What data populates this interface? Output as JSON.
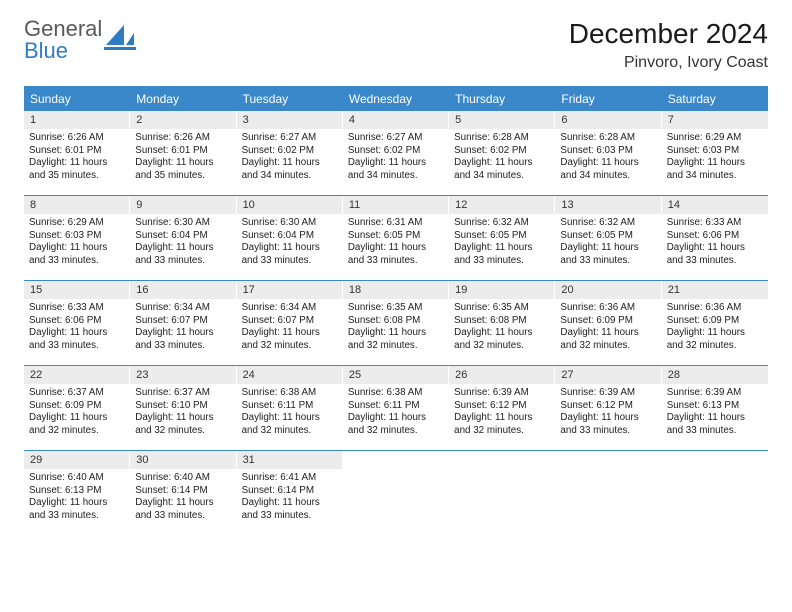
{
  "logo": {
    "line1": "General",
    "line2": "Blue",
    "icon_color": "#2e7cc2"
  },
  "title": {
    "month": "December 2024",
    "location": "Pinvoro, Ivory Coast",
    "title_fontsize": 28,
    "location_fontsize": 16,
    "title_color": "#1a1a1a"
  },
  "colors": {
    "header_bg": "#3a88c9",
    "header_text": "#ffffff",
    "daynum_bg": "#ececec",
    "body_text": "#212121",
    "week_divider": "#3a88c9",
    "background": "#ffffff"
  },
  "day_names": [
    "Sunday",
    "Monday",
    "Tuesday",
    "Wednesday",
    "Thursday",
    "Friday",
    "Saturday"
  ],
  "weeks": [
    [
      {
        "n": "1",
        "sr": "6:26 AM",
        "ss": "6:01 PM",
        "dl": "11 hours and 35 minutes."
      },
      {
        "n": "2",
        "sr": "6:26 AM",
        "ss": "6:01 PM",
        "dl": "11 hours and 35 minutes."
      },
      {
        "n": "3",
        "sr": "6:27 AM",
        "ss": "6:02 PM",
        "dl": "11 hours and 34 minutes."
      },
      {
        "n": "4",
        "sr": "6:27 AM",
        "ss": "6:02 PM",
        "dl": "11 hours and 34 minutes."
      },
      {
        "n": "5",
        "sr": "6:28 AM",
        "ss": "6:02 PM",
        "dl": "11 hours and 34 minutes."
      },
      {
        "n": "6",
        "sr": "6:28 AM",
        "ss": "6:03 PM",
        "dl": "11 hours and 34 minutes."
      },
      {
        "n": "7",
        "sr": "6:29 AM",
        "ss": "6:03 PM",
        "dl": "11 hours and 34 minutes."
      }
    ],
    [
      {
        "n": "8",
        "sr": "6:29 AM",
        "ss": "6:03 PM",
        "dl": "11 hours and 33 minutes."
      },
      {
        "n": "9",
        "sr": "6:30 AM",
        "ss": "6:04 PM",
        "dl": "11 hours and 33 minutes."
      },
      {
        "n": "10",
        "sr": "6:30 AM",
        "ss": "6:04 PM",
        "dl": "11 hours and 33 minutes."
      },
      {
        "n": "11",
        "sr": "6:31 AM",
        "ss": "6:05 PM",
        "dl": "11 hours and 33 minutes."
      },
      {
        "n": "12",
        "sr": "6:32 AM",
        "ss": "6:05 PM",
        "dl": "11 hours and 33 minutes."
      },
      {
        "n": "13",
        "sr": "6:32 AM",
        "ss": "6:05 PM",
        "dl": "11 hours and 33 minutes."
      },
      {
        "n": "14",
        "sr": "6:33 AM",
        "ss": "6:06 PM",
        "dl": "11 hours and 33 minutes."
      }
    ],
    [
      {
        "n": "15",
        "sr": "6:33 AM",
        "ss": "6:06 PM",
        "dl": "11 hours and 33 minutes."
      },
      {
        "n": "16",
        "sr": "6:34 AM",
        "ss": "6:07 PM",
        "dl": "11 hours and 33 minutes."
      },
      {
        "n": "17",
        "sr": "6:34 AM",
        "ss": "6:07 PM",
        "dl": "11 hours and 32 minutes."
      },
      {
        "n": "18",
        "sr": "6:35 AM",
        "ss": "6:08 PM",
        "dl": "11 hours and 32 minutes."
      },
      {
        "n": "19",
        "sr": "6:35 AM",
        "ss": "6:08 PM",
        "dl": "11 hours and 32 minutes."
      },
      {
        "n": "20",
        "sr": "6:36 AM",
        "ss": "6:09 PM",
        "dl": "11 hours and 32 minutes."
      },
      {
        "n": "21",
        "sr": "6:36 AM",
        "ss": "6:09 PM",
        "dl": "11 hours and 32 minutes."
      }
    ],
    [
      {
        "n": "22",
        "sr": "6:37 AM",
        "ss": "6:09 PM",
        "dl": "11 hours and 32 minutes."
      },
      {
        "n": "23",
        "sr": "6:37 AM",
        "ss": "6:10 PM",
        "dl": "11 hours and 32 minutes."
      },
      {
        "n": "24",
        "sr": "6:38 AM",
        "ss": "6:11 PM",
        "dl": "11 hours and 32 minutes."
      },
      {
        "n": "25",
        "sr": "6:38 AM",
        "ss": "6:11 PM",
        "dl": "11 hours and 32 minutes."
      },
      {
        "n": "26",
        "sr": "6:39 AM",
        "ss": "6:12 PM",
        "dl": "11 hours and 32 minutes."
      },
      {
        "n": "27",
        "sr": "6:39 AM",
        "ss": "6:12 PM",
        "dl": "11 hours and 33 minutes."
      },
      {
        "n": "28",
        "sr": "6:39 AM",
        "ss": "6:13 PM",
        "dl": "11 hours and 33 minutes."
      }
    ],
    [
      {
        "n": "29",
        "sr": "6:40 AM",
        "ss": "6:13 PM",
        "dl": "11 hours and 33 minutes."
      },
      {
        "n": "30",
        "sr": "6:40 AM",
        "ss": "6:14 PM",
        "dl": "11 hours and 33 minutes."
      },
      {
        "n": "31",
        "sr": "6:41 AM",
        "ss": "6:14 PM",
        "dl": "11 hours and 33 minutes."
      },
      null,
      null,
      null,
      null
    ]
  ],
  "labels": {
    "sunrise": "Sunrise: ",
    "sunset": "Sunset: ",
    "daylight": "Daylight: "
  }
}
